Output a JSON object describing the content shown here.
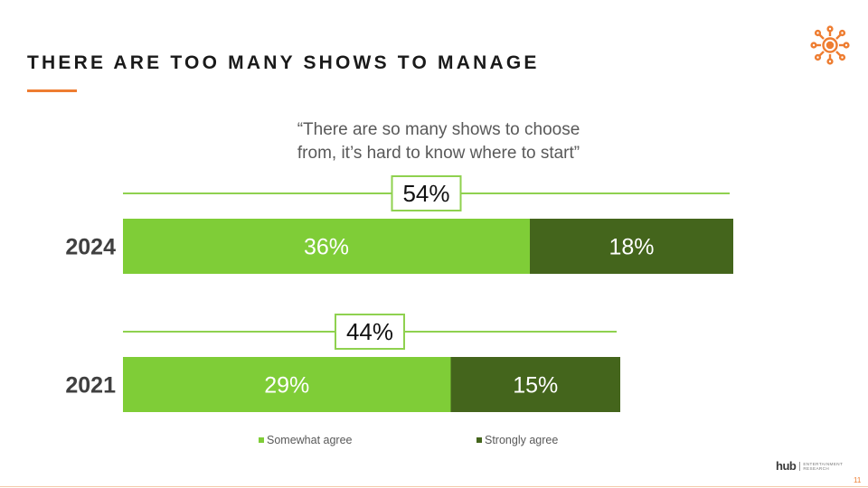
{
  "slide": {
    "title": "THERE ARE TOO MANY SHOWS TO MANAGE",
    "quote_line1": "“There are so many shows to choose",
    "quote_line2": "from, it’s hard to know where to start”",
    "page_number": "11",
    "logo_icon": "sun-network-icon",
    "accent_color": "#ee7d31"
  },
  "brand": {
    "wordmark": "hub",
    "sub_line1": "ENTERTAINMENT",
    "sub_line2": "RESEARCH"
  },
  "chart_data": {
    "type": "bar",
    "orientation": "horizontal",
    "stacked": true,
    "categories": [
      "2024",
      "2021"
    ],
    "series": [
      {
        "name": "Somewhat agree",
        "values": [
          36,
          29
        ],
        "color": "#7fcd37"
      },
      {
        "name": "Strongly agree",
        "values": [
          18,
          15
        ],
        "color": "#44651c"
      }
    ],
    "data_labels": [
      [
        "36%",
        "18%"
      ],
      [
        "29%",
        "15%"
      ]
    ],
    "totals": [
      54,
      44
    ],
    "total_labels": [
      "54%",
      "44%"
    ],
    "xlim": [
      0,
      54
    ],
    "grid": false,
    "legend": "bottom"
  }
}
